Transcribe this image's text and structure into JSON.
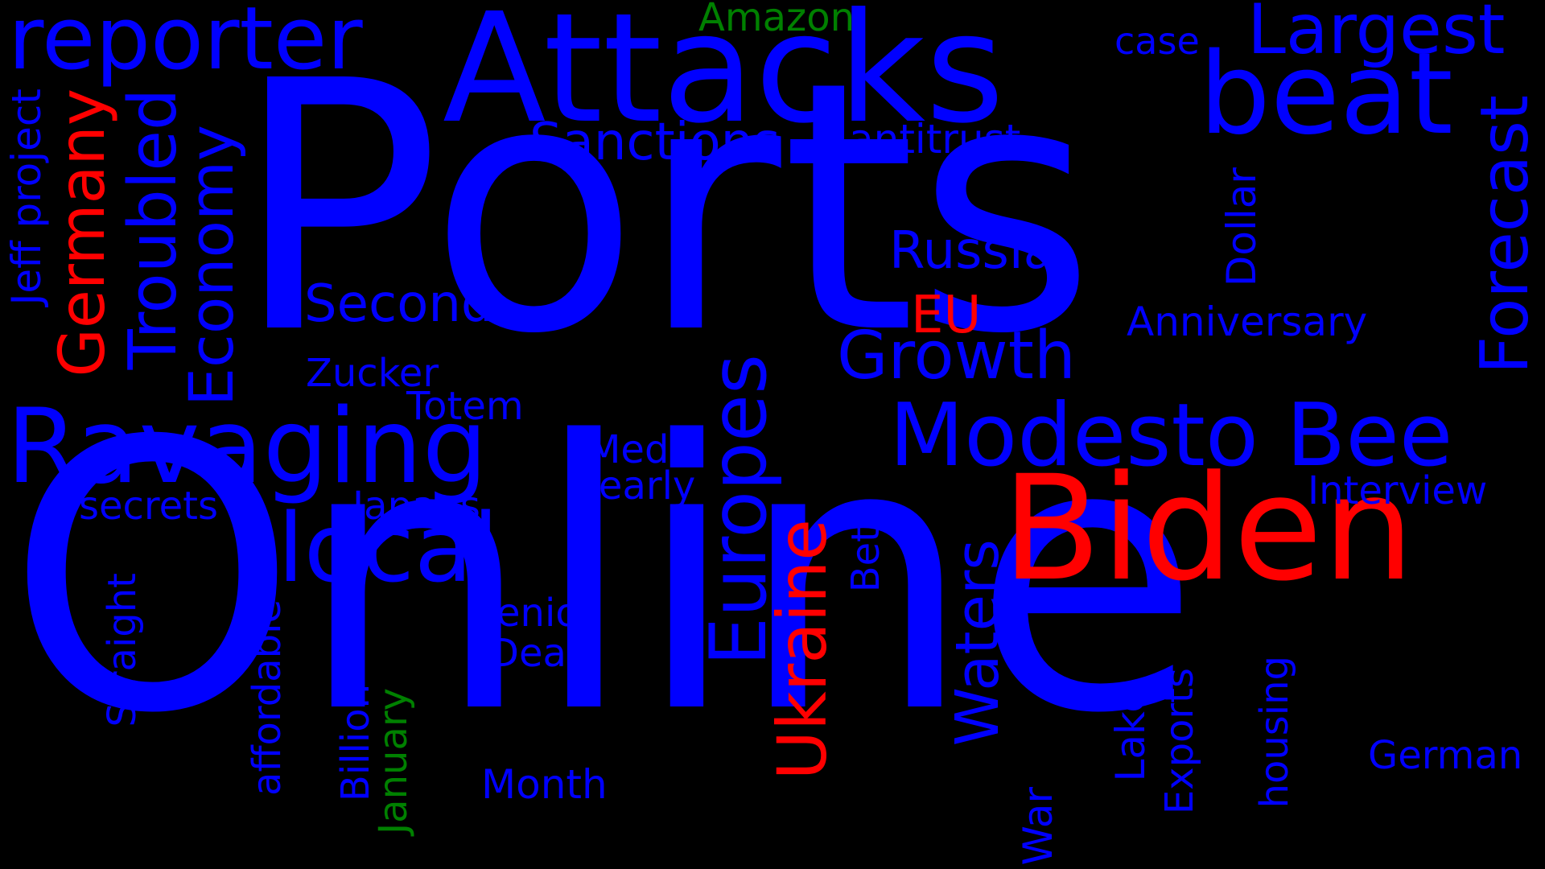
{
  "colors": {
    "background": "#000000",
    "blue": "#0000ff",
    "red": "#ff0000",
    "green": "#008000"
  },
  "words": [
    {
      "text": "Ports",
      "color": "blue",
      "orientation": "horizontal"
    },
    {
      "text": "Online",
      "color": "blue",
      "orientation": "horizontal"
    },
    {
      "text": "Attacks",
      "color": "blue",
      "orientation": "horizontal"
    },
    {
      "text": "Biden",
      "color": "red",
      "orientation": "horizontal"
    },
    {
      "text": "Ravaging",
      "color": "blue",
      "orientation": "horizontal"
    },
    {
      "text": "reporter",
      "color": "blue",
      "orientation": "horizontal"
    },
    {
      "text": "beat",
      "color": "blue",
      "orientation": "horizontal"
    },
    {
      "text": "Modesto Bee",
      "color": "blue",
      "orientation": "horizontal"
    },
    {
      "text": "local",
      "color": "blue",
      "orientation": "horizontal"
    },
    {
      "text": "Europes",
      "color": "blue",
      "orientation": "vertical"
    },
    {
      "text": "Largest",
      "color": "blue",
      "orientation": "horizontal"
    },
    {
      "text": "Troubled",
      "color": "blue",
      "orientation": "vertical"
    },
    {
      "text": "Forecast",
      "color": "blue",
      "orientation": "vertical"
    },
    {
      "text": "Growth",
      "color": "blue",
      "orientation": "horizontal"
    },
    {
      "text": "Ukraine",
      "color": "red",
      "orientation": "vertical"
    },
    {
      "text": "Economy",
      "color": "blue",
      "orientation": "vertical"
    },
    {
      "text": "Germany",
      "color": "red",
      "orientation": "vertical"
    },
    {
      "text": "Waters",
      "color": "blue",
      "orientation": "vertical"
    },
    {
      "text": "Sanctions",
      "color": "blue",
      "orientation": "horizontal"
    },
    {
      "text": "Russia",
      "color": "blue",
      "orientation": "horizontal"
    },
    {
      "text": "Second",
      "color": "blue",
      "orientation": "horizontal"
    },
    {
      "text": "Anniversary",
      "color": "blue",
      "orientation": "horizontal"
    },
    {
      "text": "antitrust",
      "color": "blue",
      "orientation": "horizontal"
    },
    {
      "text": "case",
      "color": "blue",
      "orientation": "horizontal"
    },
    {
      "text": "Amazon",
      "color": "green",
      "orientation": "horizontal"
    },
    {
      "text": "EU",
      "color": "red",
      "orientation": "horizontal"
    },
    {
      "text": "Dollar",
      "color": "blue",
      "orientation": "vertical"
    },
    {
      "text": "Jeff project",
      "color": "blue",
      "orientation": "vertical"
    },
    {
      "text": "Zucker",
      "color": "blue",
      "orientation": "horizontal"
    },
    {
      "text": "Totem",
      "color": "blue",
      "orientation": "horizontal"
    },
    {
      "text": "Media",
      "color": "blue",
      "orientation": "horizontal"
    },
    {
      "text": "Nearly",
      "color": "blue",
      "orientation": "horizontal"
    },
    {
      "text": "Interview",
      "color": "blue",
      "orientation": "horizontal"
    },
    {
      "text": "secrets",
      "color": "blue",
      "orientation": "horizontal"
    },
    {
      "text": "Japans",
      "color": "blue",
      "orientation": "horizontal"
    },
    {
      "text": "senior",
      "color": "blue",
      "orientation": "horizontal"
    },
    {
      "text": "Deals",
      "color": "blue",
      "orientation": "horizontal"
    },
    {
      "text": "Bet",
      "color": "blue",
      "orientation": "vertical"
    },
    {
      "text": "Straight",
      "color": "blue",
      "orientation": "vertical"
    },
    {
      "text": "affordable",
      "color": "blue",
      "orientation": "vertical"
    },
    {
      "text": "Billion",
      "color": "blue",
      "orientation": "vertical"
    },
    {
      "text": "January",
      "color": "green",
      "orientation": "vertical"
    },
    {
      "text": "Month",
      "color": "blue",
      "orientation": "horizontal"
    },
    {
      "text": "War",
      "color": "blue",
      "orientation": "vertical"
    },
    {
      "text": "Lake",
      "color": "blue",
      "orientation": "vertical"
    },
    {
      "text": "Exports",
      "color": "blue",
      "orientation": "vertical"
    },
    {
      "text": "housing",
      "color": "blue",
      "orientation": "vertical"
    },
    {
      "text": "German",
      "color": "blue",
      "orientation": "horizontal"
    }
  ]
}
